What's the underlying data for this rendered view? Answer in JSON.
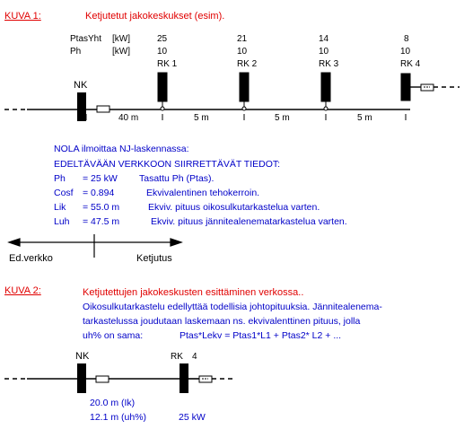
{
  "figure1": {
    "label": "KUVA 1:",
    "title": "Ketjutetut jakokeskukset (esim).",
    "row_ptas_label": "PtasYht",
    "row_ptas_unit": "[kW]",
    "row_ph_label": "Ph",
    "row_ph_unit": "[kW]",
    "nk_label": "NK",
    "centers": [
      {
        "ptas": "25",
        "ph": "10",
        "name": "RK 1"
      },
      {
        "ptas": "21",
        "ph": "10",
        "name": "RK 2"
      },
      {
        "ptas": "14",
        "ph": "10",
        "name": "RK 3"
      },
      {
        "ptas": "8",
        "ph": "10",
        "name": "RK 4"
      }
    ],
    "distances": [
      "40 m",
      "5 m",
      "5 m",
      "5 m"
    ]
  },
  "nola": {
    "line1": "NOLA ilmoittaa NJ-laskennassa:",
    "line2": "EDELTÄVÄÄN VERKKOON SIIRRETTÄVÄT TIEDOT:",
    "rows": [
      {
        "key": "Ph",
        "value": "= 25 kW",
        "desc": "Tasattu Ph (Ptas)."
      },
      {
        "key": "Cosf",
        "value": "= 0.894",
        "desc": "Ekvivalentinen tehokerroin."
      },
      {
        "key": "Lik",
        "value": "= 55.0 m",
        "desc": "Ekviv. pituus oikosulkutarkastelua varten."
      },
      {
        "key": "Luh",
        "value": "= 47.5 m",
        "desc": "Ekviv. pituus jännitealenematarkastelua varten."
      }
    ]
  },
  "arrows": {
    "left": "Ed.verkko",
    "right": "Ketjutus"
  },
  "figure2": {
    "label": "KUVA 2:",
    "title": "Ketjutettujen jakokeskusten esittäminen verkossa..",
    "text1": "Oikosulkutarkastelu edellyttää todellisia johtopituuksia. Jännitealenema-",
    "text2": "tarkastelussa joudutaan laskemaan ns. ekvivalenttinen pituus, jolla",
    "text3_a": "uh% on sama:",
    "text3_b": "Ptas*Lekv = Ptas1*L1 + Ptas2* L2 + ...",
    "nk_label": "NK",
    "rk_label": "RK",
    "rk_num": "4",
    "len_ik": "20.0 m (Ik)",
    "len_uh": "12.1 m (uh%)",
    "power": "25 kW"
  },
  "colors": {
    "red": "#e00000",
    "blue": "#0000c8",
    "black": "#000000"
  }
}
